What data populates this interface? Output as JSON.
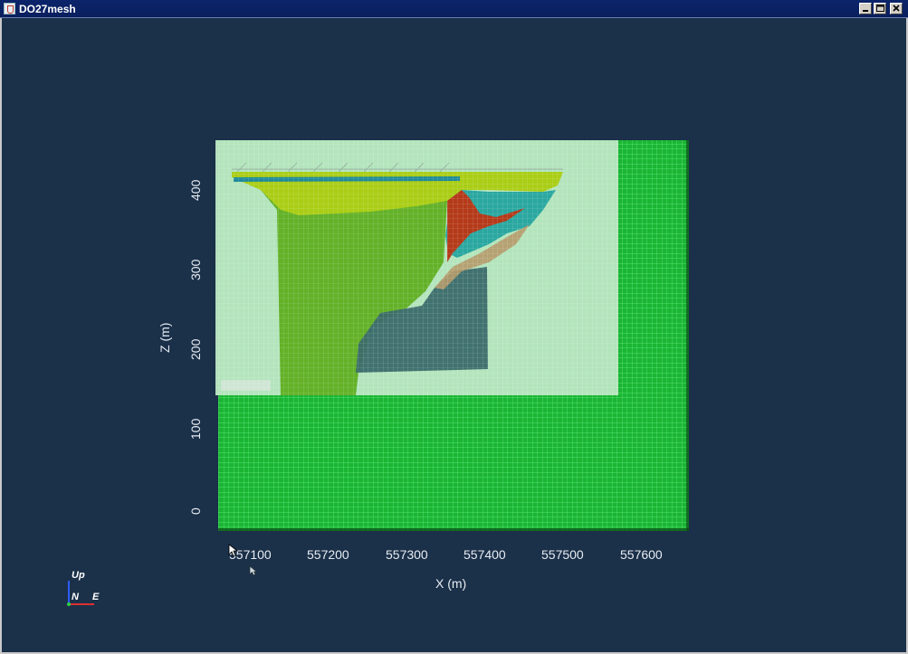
{
  "window": {
    "title": "DO27mesh",
    "controls": [
      "minimize",
      "maximize",
      "close"
    ]
  },
  "plot": {
    "x_axis_label": "X (m)",
    "z_axis_label": "Z (m)",
    "x_ticks": [
      "557100",
      "557200",
      "557300",
      "557400",
      "557500",
      "557600"
    ],
    "z_ticks": [
      "400",
      "300",
      "200",
      "100",
      "0"
    ],
    "colors": {
      "background": "#1b3049",
      "mesh_green": "#1bb534",
      "mesh_grid": "#7dffa0",
      "overlay_pale": "#b9e6c2",
      "unit_lime": "#aacd16",
      "unit_green": "#63b128",
      "unit_teal": "#1e8a9a",
      "unit_red": "#b43a19",
      "unit_slate": "#3b6c6a"
    }
  },
  "orientation_triad": {
    "up_label": "Up",
    "north_label": "N",
    "east_label": "E"
  }
}
